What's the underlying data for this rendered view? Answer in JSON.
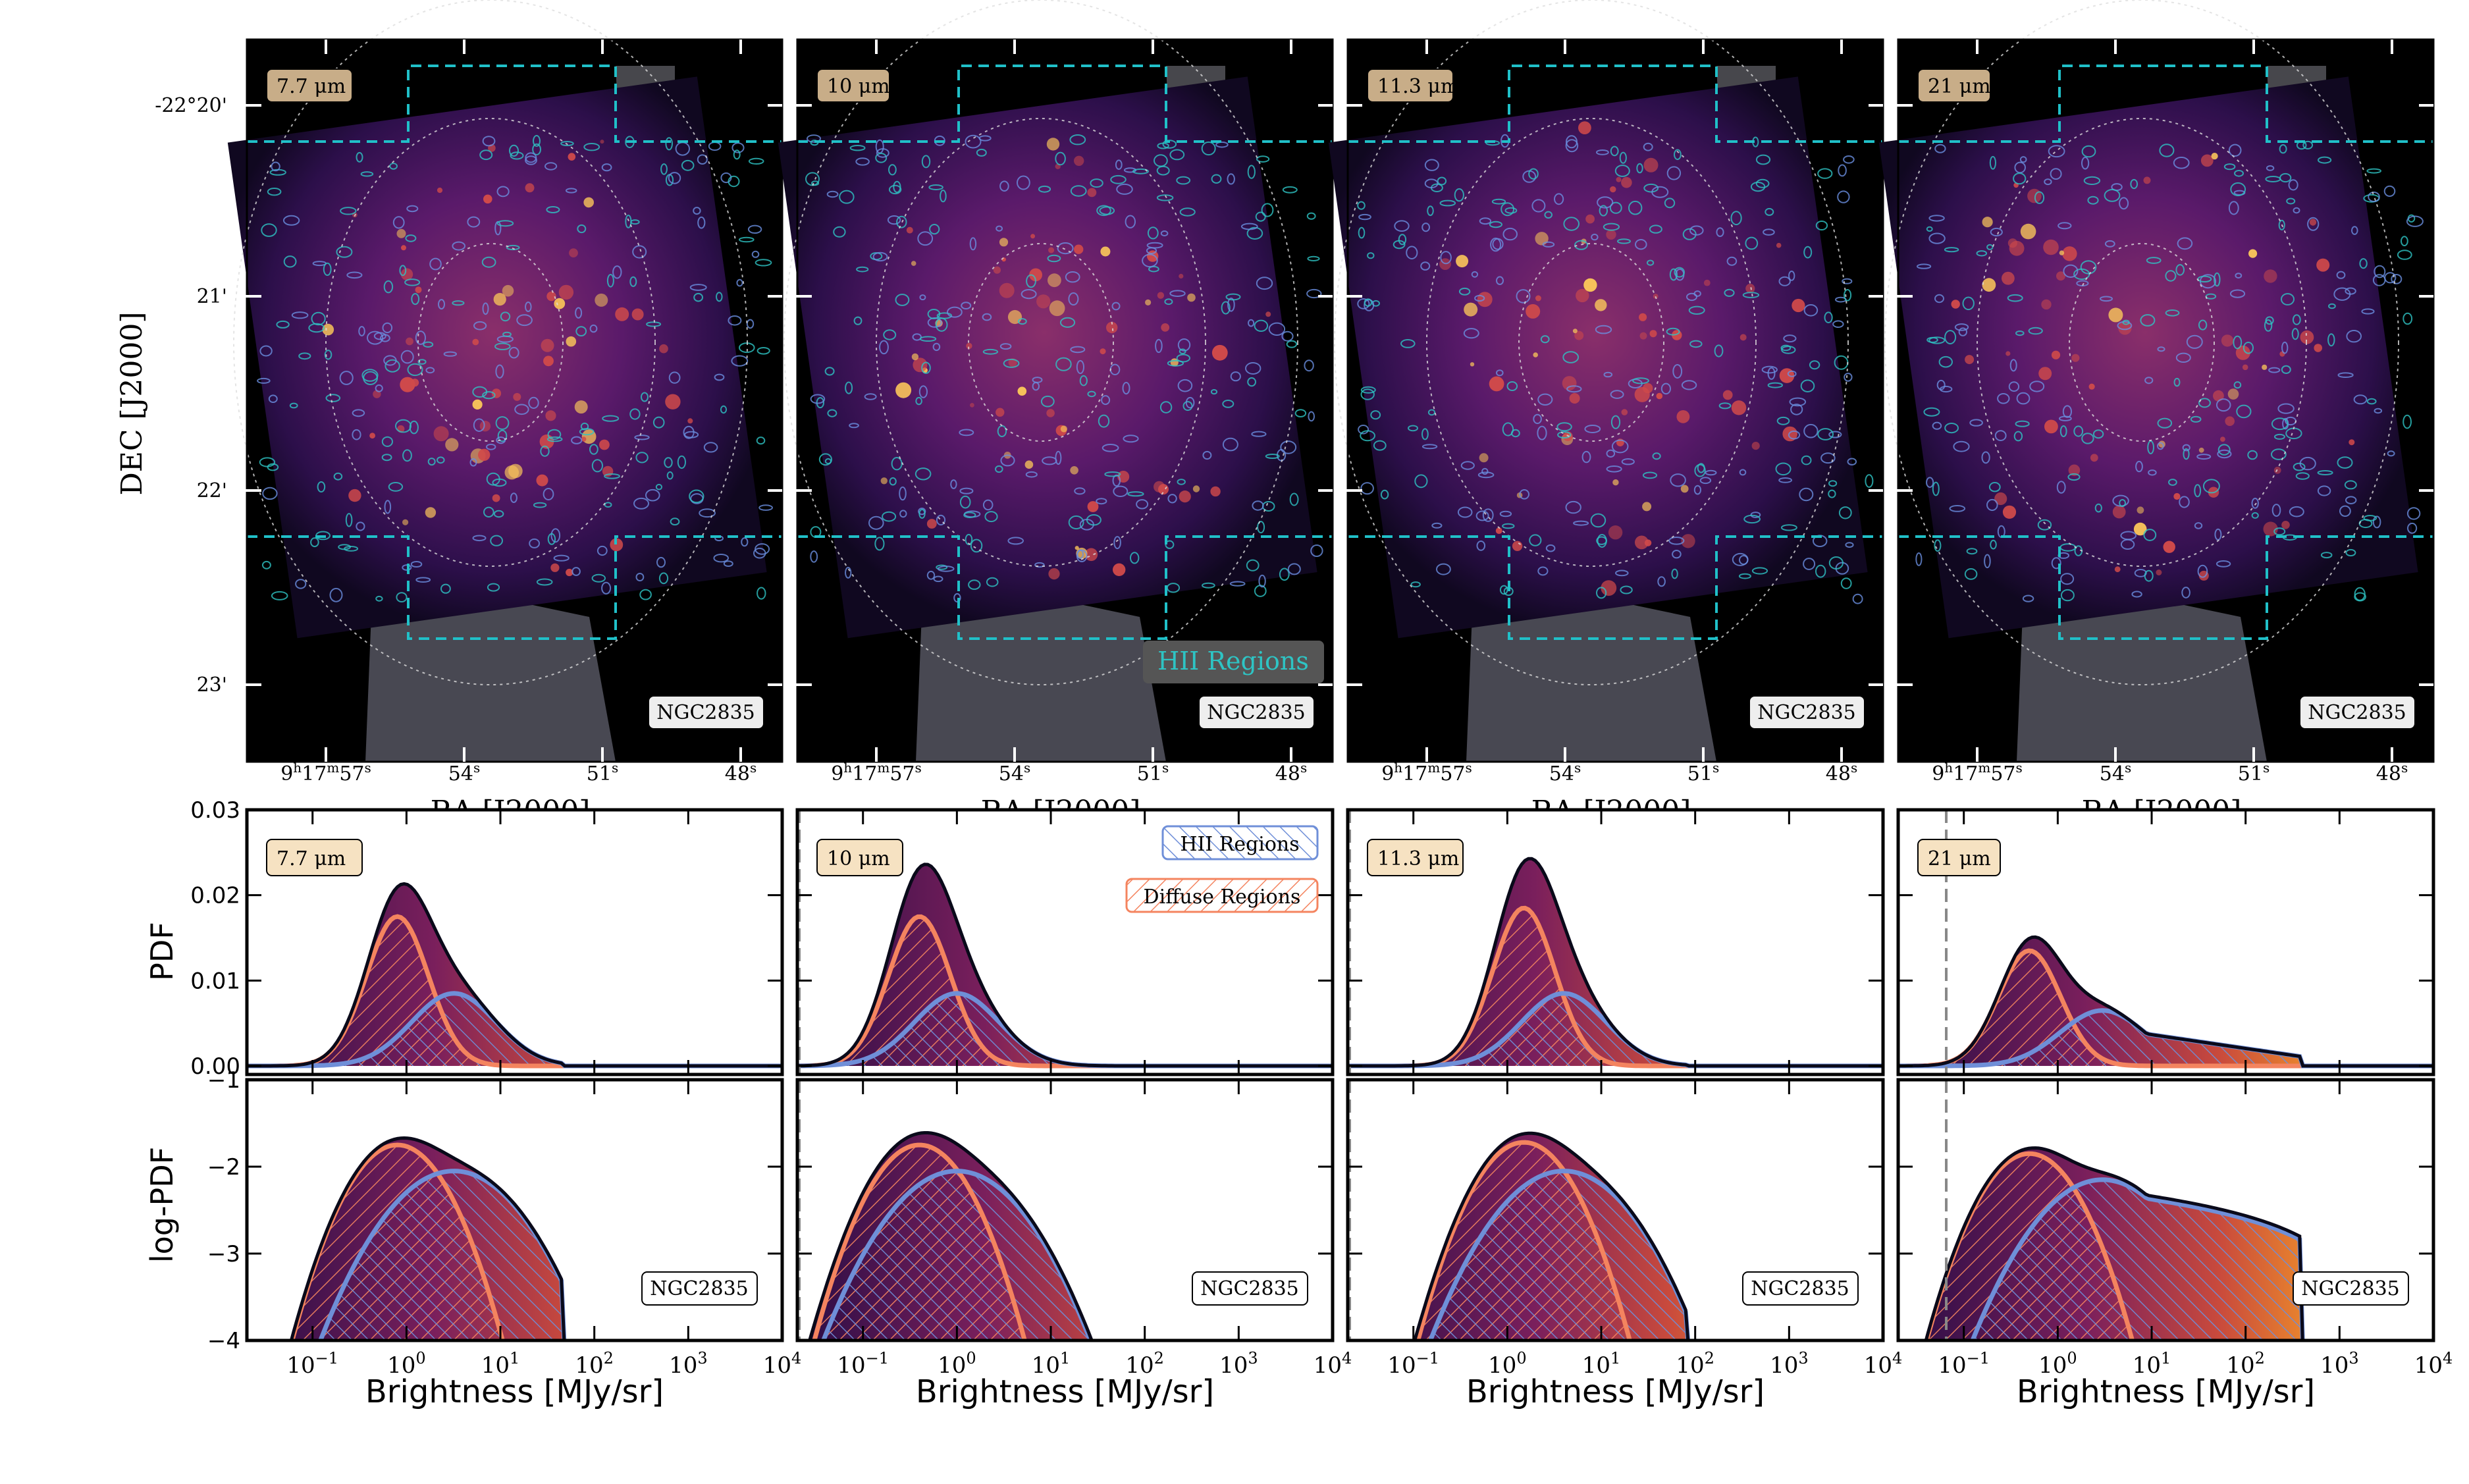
{
  "galaxy": "NGC2835",
  "image_panels": {
    "ylabel": "DEC [J2000]",
    "xlabel": "RA [J2000]",
    "dec_ticks": [
      "-22°20'",
      "21'",
      "22'",
      "23'"
    ],
    "ra_ticks": [
      {
        "h": "9",
        "m": "17",
        "s": "57"
      },
      {
        "s": "54"
      },
      {
        "s": "51"
      },
      {
        "s": "48"
      }
    ],
    "bands": [
      "7.7 μm",
      "10 μm",
      "11.3 μm",
      "21 μm"
    ],
    "hii_label": "HII Regions"
  },
  "chart_data": [
    {
      "type": "area",
      "panel": "PDF",
      "ylabel": "PDF",
      "ylim": [
        -0.001,
        0.03
      ],
      "yticks": [
        "0.00",
        "0.01",
        "0.02",
        "0.03"
      ],
      "xscale": "log",
      "xlim": [
        0.02,
        10000
      ],
      "legend": [
        "HII Regions",
        "Diffuse Regions"
      ],
      "panels": [
        {
          "band": "7.7 μm",
          "threshold": null,
          "total": {
            "peak_x": 1.0,
            "peak_y": 0.0225
          },
          "diffuse": {
            "peak_x": 0.8,
            "peak_y": 0.0175
          },
          "hii": {
            "peak_x": 3.2,
            "peak_y": 0.0085
          }
        },
        {
          "band": "10 μm",
          "threshold": 0.021,
          "total": {
            "peak_x": 0.5,
            "peak_y": 0.023
          },
          "diffuse": {
            "peak_x": 0.4,
            "peak_y": 0.0175
          },
          "hii": {
            "peak_x": 1.0,
            "peak_y": 0.0085
          }
        },
        {
          "band": "11.3 μm",
          "threshold": 0.021,
          "total": {
            "peak_x": 1.6,
            "peak_y": 0.024
          },
          "diffuse": {
            "peak_x": 1.5,
            "peak_y": 0.0185
          },
          "hii": {
            "peak_x": 4.0,
            "peak_y": 0.0085
          }
        },
        {
          "band": "21 μm",
          "threshold": 0.065,
          "total": {
            "peak_x": 0.6,
            "peak_y": 0.0165
          },
          "diffuse": {
            "peak_x": 0.5,
            "peak_y": 0.0135
          },
          "hii": {
            "peak_x": 3.0,
            "peak_y": 0.0065
          }
        }
      ]
    },
    {
      "type": "area",
      "panel": "log-PDF",
      "ylabel": "log-PDF",
      "ylim": [
        -4,
        -1
      ],
      "yticks": [
        "−4",
        "−3",
        "−2",
        "−1"
      ],
      "xscale": "log",
      "xlim": [
        0.02,
        10000
      ],
      "xlabel": "Brightness [MJy/sr]",
      "xticks": [
        "10-1",
        "100",
        "101",
        "102",
        "103",
        "104"
      ],
      "panels": [
        {
          "band": "7.7 μm",
          "total_peak": -1.65,
          "hii_peak": -2.05,
          "diffuse_peak": -1.75,
          "max_x": 45
        },
        {
          "band": "10 μm",
          "total_peak": -1.62,
          "hii_peak": -2.05,
          "diffuse_peak": -1.75,
          "max_x": 45
        },
        {
          "band": "11.3 μm",
          "total_peak": -1.62,
          "hii_peak": -2.05,
          "diffuse_peak": -1.72,
          "max_x": 80
        },
        {
          "band": "21 μm",
          "total_peak": -1.75,
          "hii_peak": -2.15,
          "diffuse_peak": -1.85,
          "max_x": 400
        }
      ]
    }
  ],
  "colors": {
    "total_fill": "#4a1a5a",
    "diffuse": "#f4845f",
    "hii": "#6f8fd8",
    "hii_contour": "#2ec4c4",
    "footprint": "#20c0c8",
    "band_label_bg": "#c8ad88",
    "band_label_bg_plot": "#f6e2c2"
  }
}
